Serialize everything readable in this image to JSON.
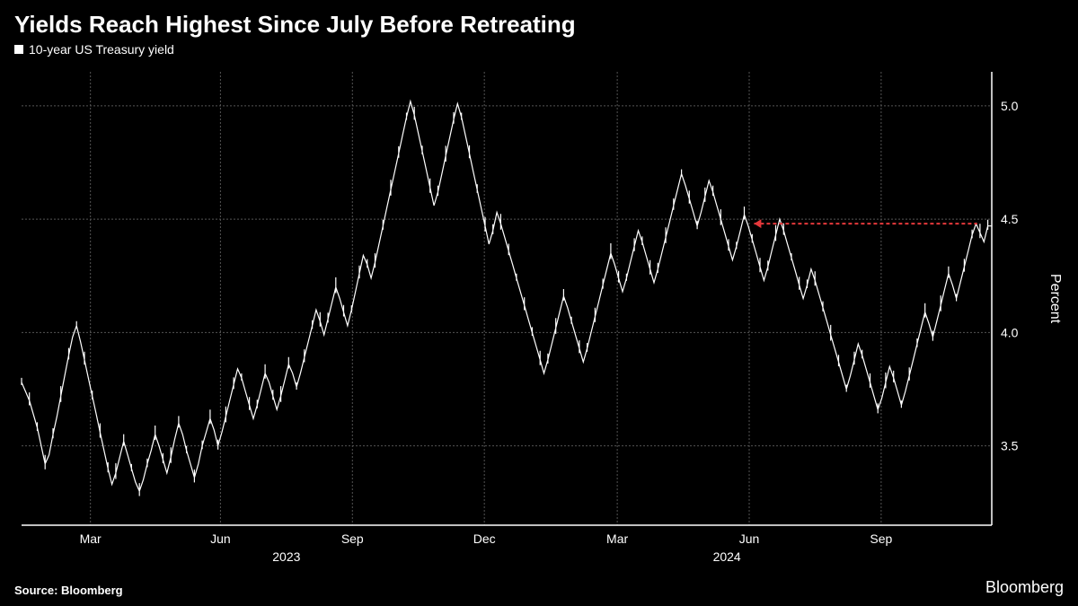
{
  "title": "Yields Reach Highest Since July Before Retreating",
  "legend": {
    "label": "10-year US Treasury yield",
    "marker_color": "#ffffff"
  },
  "source": "Source: Bloomberg",
  "brand": "Bloomberg",
  "chart": {
    "type": "line",
    "background_color": "#000000",
    "line_color": "#ffffff",
    "grid_color": "#555555",
    "axis_color": "#ffffff",
    "annotation_color": "#e5383b",
    "y_axis": {
      "title": "Percent",
      "lim": [
        3.15,
        5.15
      ],
      "ticks": [
        3.5,
        4.0,
        4.5,
        5.0
      ],
      "tick_labels": [
        "3.5",
        "4.0",
        "4.5",
        "5.0"
      ],
      "label_fontsize": 14
    },
    "x_axis": {
      "month_ticks": [
        {
          "t": 0.071,
          "label": "Mar"
        },
        {
          "t": 0.205,
          "label": "Jun"
        },
        {
          "t": 0.341,
          "label": "Sep"
        },
        {
          "t": 0.477,
          "label": "Dec"
        },
        {
          "t": 0.614,
          "label": "Mar"
        },
        {
          "t": 0.75,
          "label": "Jun"
        },
        {
          "t": 0.886,
          "label": "Sep"
        }
      ],
      "year_ticks": [
        {
          "t": 0.273,
          "label": "2023"
        },
        {
          "t": 0.727,
          "label": "2024"
        }
      ]
    },
    "annotation_line": {
      "y": 4.48,
      "t_start": 0.755,
      "t_end": 0.985
    },
    "values": [
      3.78,
      3.74,
      3.7,
      3.64,
      3.58,
      3.5,
      3.42,
      3.46,
      3.55,
      3.63,
      3.72,
      3.81,
      3.9,
      3.98,
      4.03,
      3.96,
      3.88,
      3.8,
      3.72,
      3.64,
      3.56,
      3.48,
      3.4,
      3.33,
      3.38,
      3.45,
      3.52,
      3.46,
      3.4,
      3.34,
      3.3,
      3.35,
      3.42,
      3.48,
      3.55,
      3.5,
      3.44,
      3.38,
      3.45,
      3.53,
      3.6,
      3.55,
      3.48,
      3.42,
      3.36,
      3.42,
      3.5,
      3.56,
      3.62,
      3.57,
      3.5,
      3.56,
      3.63,
      3.7,
      3.77,
      3.84,
      3.8,
      3.74,
      3.68,
      3.62,
      3.68,
      3.75,
      3.82,
      3.78,
      3.72,
      3.66,
      3.72,
      3.79,
      3.86,
      3.82,
      3.76,
      3.82,
      3.89,
      3.96,
      4.03,
      4.1,
      4.05,
      3.99,
      4.06,
      4.13,
      4.2,
      4.15,
      4.09,
      4.03,
      4.1,
      4.18,
      4.26,
      4.34,
      4.3,
      4.24,
      4.31,
      4.39,
      4.47,
      4.55,
      4.63,
      4.71,
      4.79,
      4.87,
      4.95,
      5.02,
      4.96,
      4.88,
      4.8,
      4.72,
      4.64,
      4.56,
      4.62,
      4.7,
      4.78,
      4.86,
      4.94,
      5.01,
      4.95,
      4.87,
      4.79,
      4.71,
      4.63,
      4.55,
      4.47,
      4.39,
      4.45,
      4.53,
      4.48,
      4.42,
      4.36,
      4.3,
      4.24,
      4.18,
      4.12,
      4.06,
      4.0,
      3.94,
      3.88,
      3.82,
      3.88,
      3.95,
      4.02,
      4.09,
      4.16,
      4.11,
      4.05,
      3.99,
      3.93,
      3.87,
      3.93,
      4.0,
      4.07,
      4.14,
      4.21,
      4.28,
      4.35,
      4.3,
      4.24,
      4.18,
      4.24,
      4.31,
      4.38,
      4.45,
      4.4,
      4.34,
      4.28,
      4.22,
      4.28,
      4.35,
      4.42,
      4.49,
      4.56,
      4.63,
      4.7,
      4.65,
      4.59,
      4.53,
      4.47,
      4.53,
      4.6,
      4.67,
      4.62,
      4.56,
      4.5,
      4.44,
      4.38,
      4.32,
      4.38,
      4.45,
      4.52,
      4.47,
      4.41,
      4.35,
      4.29,
      4.23,
      4.29,
      4.36,
      4.43,
      4.5,
      4.45,
      4.39,
      4.33,
      4.27,
      4.21,
      4.15,
      4.21,
      4.28,
      4.23,
      4.17,
      4.11,
      4.05,
      3.99,
      3.93,
      3.87,
      3.81,
      3.75,
      3.81,
      3.88,
      3.95,
      3.9,
      3.84,
      3.78,
      3.72,
      3.66,
      3.71,
      3.78,
      3.85,
      3.8,
      3.74,
      3.68,
      3.74,
      3.81,
      3.88,
      3.95,
      4.02,
      4.09,
      4.04,
      3.98,
      4.05,
      4.12,
      4.19,
      4.26,
      4.21,
      4.15,
      4.22,
      4.29,
      4.36,
      4.43,
      4.48,
      4.44,
      4.4,
      4.47,
      4.47
    ]
  }
}
